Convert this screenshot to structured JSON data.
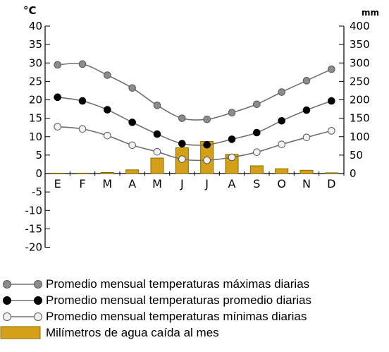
{
  "chart_data": {
    "type": "bar+line",
    "left_axis_unit": "°C",
    "right_axis_unit": "mm",
    "categories": [
      "E",
      "F",
      "M",
      "A",
      "M",
      "J",
      "J",
      "A",
      "S",
      "O",
      "N",
      "D"
    ],
    "y_left_ticks": [
      "40",
      "35",
      "30",
      "25",
      "20",
      "15",
      "10",
      "5",
      "0",
      "-5",
      "-10",
      "-15",
      "-20"
    ],
    "y_right_ticks": [
      "400",
      "350",
      "300",
      "250",
      "200",
      "150",
      "100",
      "50",
      "0"
    ],
    "ylim_left": [
      -20,
      40
    ],
    "ylim_right": [
      0,
      400
    ],
    "series": [
      {
        "name": "Promedio mensual temperaturas máximas diarias",
        "type": "line",
        "axis": "left",
        "marker": "gray",
        "values": [
          29.5,
          29.7,
          26.7,
          23.2,
          18.5,
          15.0,
          14.7,
          16.5,
          18.8,
          22.1,
          25.2,
          28.3
        ]
      },
      {
        "name": "Promedio mensual temperaturas promedio diarias",
        "type": "line",
        "axis": "left",
        "marker": "black",
        "values": [
          20.7,
          19.7,
          17.3,
          13.9,
          10.7,
          8.1,
          7.8,
          9.3,
          11.1,
          14.3,
          17.2,
          19.7
        ]
      },
      {
        "name": "Promedio mensual temperaturas mínimas diarias",
        "type": "line",
        "axis": "left",
        "marker": "white",
        "values": [
          12.7,
          12.1,
          10.3,
          7.7,
          5.9,
          3.9,
          3.6,
          4.4,
          5.8,
          7.9,
          9.8,
          11.6
        ]
      },
      {
        "name": "Milímetros de agua caída al mes",
        "type": "bar",
        "axis": "right",
        "values": [
          1,
          1,
          3,
          10,
          42,
          70,
          87,
          52,
          21,
          13,
          9,
          2
        ]
      }
    ],
    "colors": {
      "bar": "#d4a017",
      "bar_border": "#8a6a00",
      "line": "#707070",
      "marker_max": "#8c8c8c",
      "marker_avg": "#000000",
      "marker_min": "#f2f2f2"
    }
  }
}
